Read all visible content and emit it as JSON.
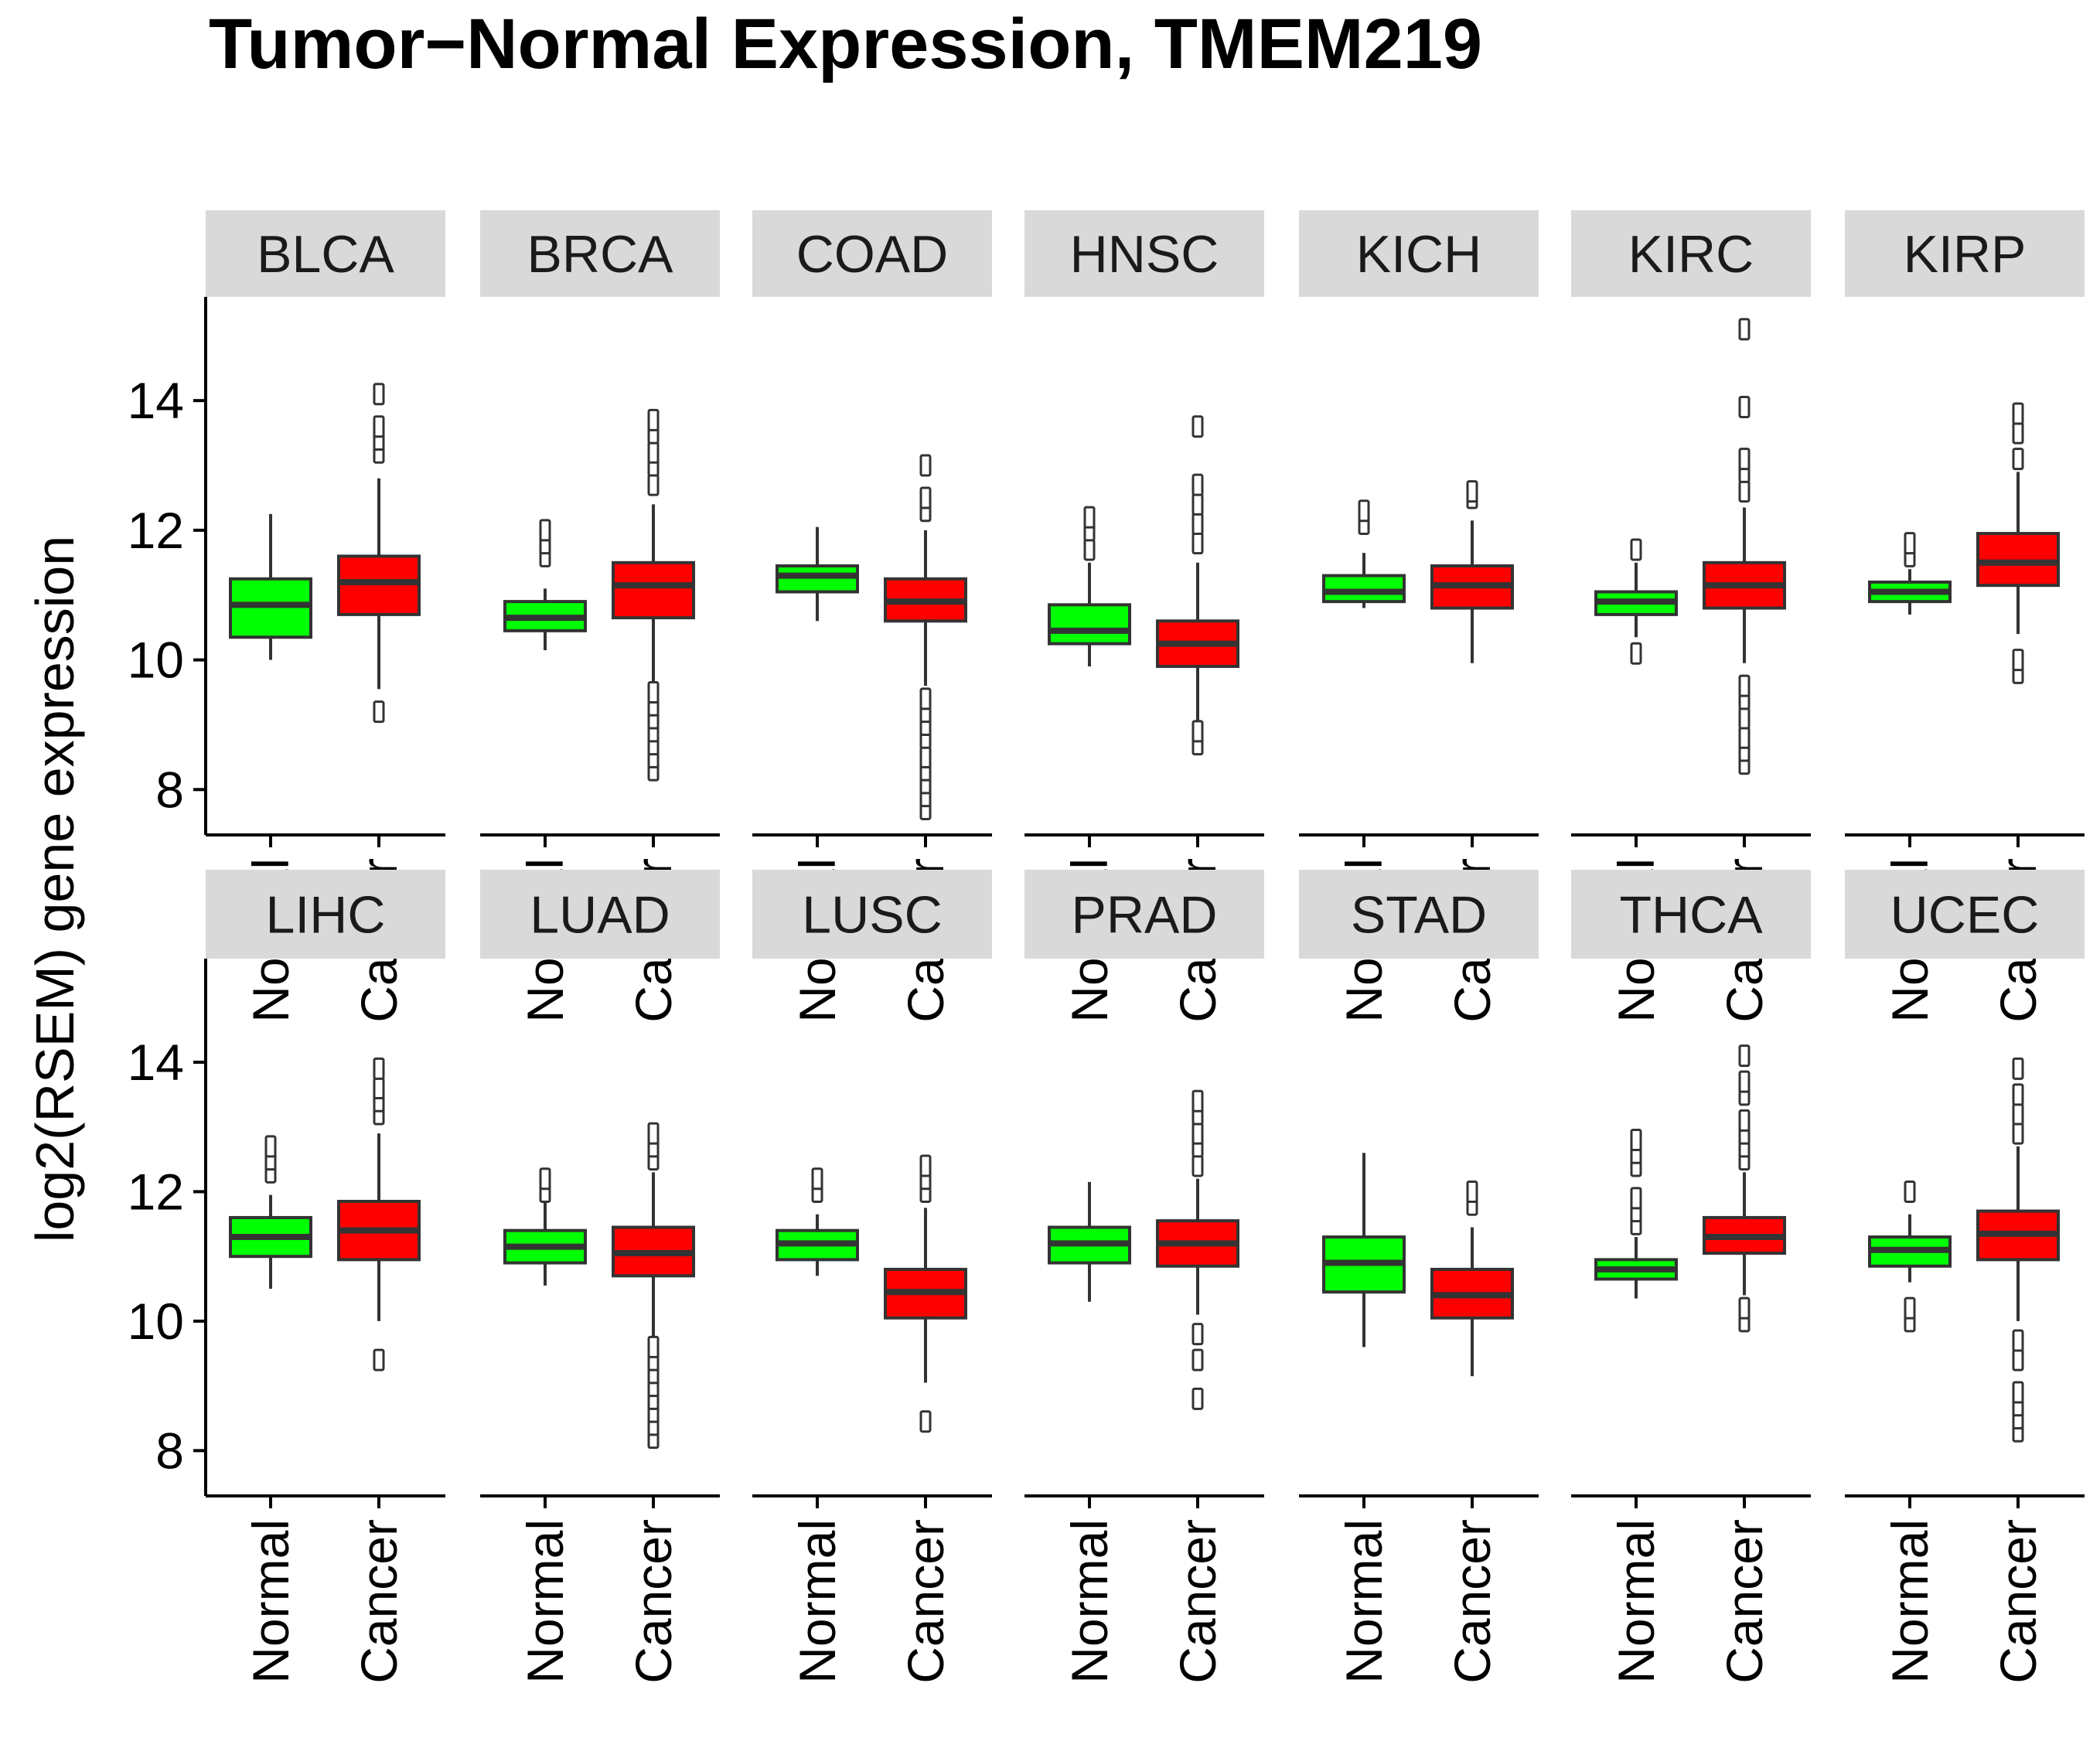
{
  "chart_data": {
    "type": "boxplot",
    "title": "Tumor−Normal Expression,  TMEM219",
    "ylabel": "log2(RSEM) gene expression",
    "xlabel": "",
    "ylim": [
      7.3,
      15.6
    ],
    "yticks": [
      8,
      10,
      12,
      14
    ],
    "categories": [
      "Normal",
      "Cancer"
    ],
    "colors": {
      "Normal": "#00ff00",
      "Cancer": "#ff0000",
      "outline": "#333333",
      "strip_bg": "#d9d9d9"
    },
    "grid": false,
    "panels": [
      {
        "name": "BLCA",
        "Normal": {
          "min": 10.0,
          "q1": 10.35,
          "median": 10.85,
          "q3": 11.25,
          "max": 12.25,
          "outliers": []
        },
        "Cancer": {
          "min": 9.55,
          "q1": 10.7,
          "median": 11.2,
          "q3": 11.6,
          "max": 12.8,
          "outliers": [
            9.2,
            13.2,
            13.4,
            13.6,
            14.1
          ]
        }
      },
      {
        "name": "BRCA",
        "Normal": {
          "min": 10.15,
          "q1": 10.45,
          "median": 10.65,
          "q3": 10.9,
          "max": 11.1,
          "outliers": [
            11.6,
            11.8,
            12.0
          ]
        },
        "Cancer": {
          "min": 9.6,
          "q1": 10.65,
          "median": 11.15,
          "q3": 11.5,
          "max": 12.4,
          "outliers": [
            8.3,
            8.5,
            8.7,
            8.9,
            9.1,
            9.3,
            9.5,
            12.7,
            13.0,
            13.2,
            13.5,
            13.7
          ]
        }
      },
      {
        "name": "COAD",
        "Normal": {
          "min": 10.6,
          "q1": 11.05,
          "median": 11.3,
          "q3": 11.45,
          "max": 12.05,
          "outliers": []
        },
        "Cancer": {
          "min": 9.6,
          "q1": 10.6,
          "median": 10.9,
          "q3": 11.25,
          "max": 12.0,
          "outliers": [
            7.7,
            7.9,
            8.1,
            8.3,
            8.5,
            8.8,
            9.0,
            9.2,
            9.4,
            12.3,
            12.5,
            13.0
          ]
        }
      },
      {
        "name": "HNSC",
        "Normal": {
          "min": 9.9,
          "q1": 10.25,
          "median": 10.45,
          "q3": 10.85,
          "max": 11.5,
          "outliers": [
            11.7,
            12.0,
            12.2
          ]
        },
        "Cancer": {
          "min": 9.0,
          "q1": 9.9,
          "median": 10.25,
          "q3": 10.6,
          "max": 11.5,
          "outliers": [
            8.7,
            8.9,
            11.8,
            12.1,
            12.4,
            12.7,
            13.6
          ]
        }
      },
      {
        "name": "KICH",
        "Normal": {
          "min": 10.8,
          "q1": 10.9,
          "median": 11.05,
          "q3": 11.3,
          "max": 11.65,
          "outliers": [
            12.1,
            12.3
          ]
        },
        "Cancer": {
          "min": 9.95,
          "q1": 10.8,
          "median": 11.15,
          "q3": 11.45,
          "max": 12.15,
          "outliers": [
            12.5,
            12.6
          ]
        }
      },
      {
        "name": "KIRC",
        "Normal": {
          "min": 10.35,
          "q1": 10.7,
          "median": 10.9,
          "q3": 11.05,
          "max": 11.5,
          "outliers": [
            10.1,
            11.7
          ]
        },
        "Cancer": {
          "min": 9.95,
          "q1": 10.8,
          "median": 11.15,
          "q3": 11.5,
          "max": 12.35,
          "outliers": [
            8.4,
            8.6,
            8.8,
            9.1,
            9.4,
            9.6,
            12.6,
            12.9,
            13.1,
            13.9,
            15.1
          ]
        }
      },
      {
        "name": "KIRP",
        "Normal": {
          "min": 10.7,
          "q1": 10.9,
          "median": 11.05,
          "q3": 11.2,
          "max": 11.4,
          "outliers": [
            11.6,
            11.8
          ]
        },
        "Cancer": {
          "min": 10.4,
          "q1": 11.15,
          "median": 11.5,
          "q3": 11.95,
          "max": 12.9,
          "outliers": [
            9.8,
            10.0,
            13.1,
            13.5,
            13.8
          ]
        }
      },
      {
        "name": "LIHC",
        "Normal": {
          "min": 10.5,
          "q1": 11.0,
          "median": 11.3,
          "q3": 11.6,
          "max": 11.95,
          "outliers": [
            12.3,
            12.5,
            12.7
          ]
        },
        "Cancer": {
          "min": 10.0,
          "q1": 10.95,
          "median": 11.4,
          "q3": 11.85,
          "max": 12.9,
          "outliers": [
            9.4,
            13.2,
            13.4,
            13.6,
            13.9
          ]
        }
      },
      {
        "name": "LUAD",
        "Normal": {
          "min": 10.55,
          "q1": 10.9,
          "median": 11.15,
          "q3": 11.4,
          "max": 11.85,
          "outliers": [
            12.0,
            12.2
          ]
        },
        "Cancer": {
          "min": 9.7,
          "q1": 10.7,
          "median": 11.05,
          "q3": 11.45,
          "max": 12.3,
          "outliers": [
            8.2,
            8.4,
            8.6,
            8.8,
            9.0,
            9.2,
            9.4,
            9.6,
            12.5,
            12.7,
            12.9
          ]
        }
      },
      {
        "name": "LUSC",
        "Normal": {
          "min": 10.7,
          "q1": 10.95,
          "median": 11.2,
          "q3": 11.4,
          "max": 11.65,
          "outliers": [
            12.0,
            12.2
          ]
        },
        "Cancer": {
          "min": 9.05,
          "q1": 10.05,
          "median": 10.45,
          "q3": 10.8,
          "max": 11.75,
          "outliers": [
            8.45,
            12.0,
            12.2,
            12.4
          ]
        }
      },
      {
        "name": "PRAD",
        "Normal": {
          "min": 10.3,
          "q1": 10.9,
          "median": 11.2,
          "q3": 11.45,
          "max": 12.15,
          "outliers": []
        },
        "Cancer": {
          "min": 10.1,
          "q1": 10.85,
          "median": 11.2,
          "q3": 11.55,
          "max": 12.2,
          "outliers": [
            8.8,
            9.4,
            9.8,
            12.4,
            12.7,
            12.9,
            13.2,
            13.4
          ]
        }
      },
      {
        "name": "STAD",
        "Normal": {
          "min": 9.6,
          "q1": 10.45,
          "median": 10.9,
          "q3": 11.3,
          "max": 12.6,
          "outliers": []
        },
        "Cancer": {
          "min": 9.15,
          "q1": 10.05,
          "median": 10.4,
          "q3": 10.8,
          "max": 11.45,
          "outliers": [
            11.8,
            12.0
          ]
        }
      },
      {
        "name": "THCA",
        "Normal": {
          "min": 10.35,
          "q1": 10.65,
          "median": 10.8,
          "q3": 10.95,
          "max": 11.3,
          "outliers": [
            11.5,
            11.7,
            11.9,
            12.4,
            12.6,
            12.8
          ]
        },
        "Cancer": {
          "min": 10.4,
          "q1": 11.05,
          "median": 11.3,
          "q3": 11.6,
          "max": 12.3,
          "outliers": [
            10.0,
            10.2,
            12.5,
            12.7,
            12.9,
            13.1,
            13.5,
            13.7,
            14.1
          ]
        }
      },
      {
        "name": "UCEC",
        "Normal": {
          "min": 10.6,
          "q1": 10.85,
          "median": 11.1,
          "q3": 11.3,
          "max": 11.65,
          "outliers": [
            10.0,
            10.2,
            12.0
          ]
        },
        "Cancer": {
          "min": 10.0,
          "q1": 10.95,
          "median": 11.35,
          "q3": 11.7,
          "max": 12.7,
          "outliers": [
            8.3,
            8.5,
            8.7,
            8.9,
            9.4,
            9.7,
            12.9,
            13.2,
            13.5,
            13.9
          ]
        }
      }
    ]
  }
}
